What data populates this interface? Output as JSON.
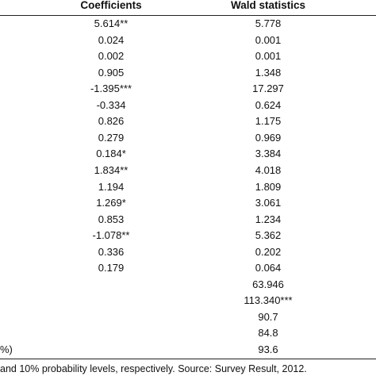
{
  "table": {
    "header": {
      "coefficients": "Coefficients",
      "wald": "Wald statistics"
    },
    "rows": [
      {
        "coef": "5.614**",
        "wald": "5.778"
      },
      {
        "coef": "0.024",
        "wald": "0.001"
      },
      {
        "coef": "0.002",
        "wald": "0.001"
      },
      {
        "coef": "0.905",
        "wald": "1.348"
      },
      {
        "coef": "-1.395***",
        "wald": "17.297"
      },
      {
        "coef": "-0.334",
        "wald": "0.624"
      },
      {
        "coef": "0.826",
        "wald": "1.175"
      },
      {
        "coef": "0.279",
        "wald": "0.969"
      },
      {
        "coef": "0.184*",
        "wald": "3.384"
      },
      {
        "coef": "1.834**",
        "wald": "4.018"
      },
      {
        "coef": "1.194",
        "wald": "1.809"
      },
      {
        "coef": "1.269*",
        "wald": "3.061"
      },
      {
        "coef": "0.853",
        "wald": "1.234"
      },
      {
        "coef": "-1.078**",
        "wald": "5.362"
      },
      {
        "coef": "0.336",
        "wald": "0.202"
      },
      {
        "coef": "0.179",
        "wald": "0.064"
      },
      {
        "wald": "63.946"
      },
      {
        "wald": "113.340***"
      },
      {
        "wald": "90.7"
      },
      {
        "wald": "84.8"
      },
      {
        "label": "%)",
        "wald": "93.6"
      }
    ]
  },
  "footnote": "and 10% probability levels, respectively. Source: Survey Result, 2012."
}
